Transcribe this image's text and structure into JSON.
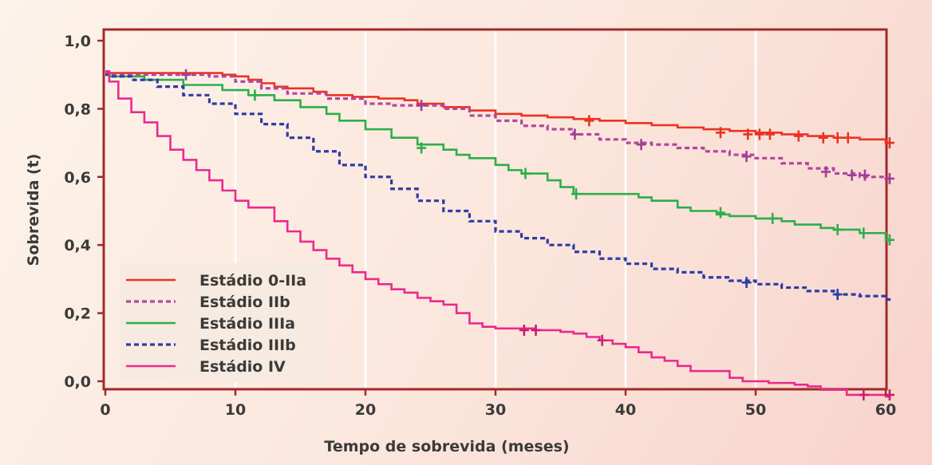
{
  "chart_data": {
    "type": "line",
    "title": "",
    "xlabel": "Tempo de sobrevida (meses)",
    "ylabel": "Sobrevida (t)",
    "xlim": [
      0,
      61
    ],
    "ylim": [
      -0.04,
      1.03
    ],
    "xticks": [
      0,
      10,
      20,
      30,
      40,
      50,
      60
    ],
    "xtick_labels": [
      "0",
      "10",
      "20",
      "30",
      "40",
      "50",
      "60"
    ],
    "yticks": [
      0.0,
      0.2,
      0.4,
      0.6,
      0.8,
      1.0
    ],
    "ytick_labels": [
      "0,0",
      "0,2",
      "0,4",
      "0,6",
      "0,8",
      "1,0"
    ],
    "grid": "vertical",
    "legend_position": "bottom-left",
    "series": [
      {
        "name": "Estádio 0-IIa",
        "color": "#ea3323",
        "dash": "solid",
        "x": [
          0,
          0.3,
          9,
          10,
          11,
          12,
          13,
          14,
          16,
          17,
          19,
          21,
          23,
          24,
          26,
          28,
          30,
          32,
          34,
          36,
          38,
          40,
          42,
          44,
          46,
          48,
          50,
          52,
          54,
          56,
          58,
          60,
          60.4
        ],
        "y": [
          0.91,
          0.905,
          0.9,
          0.895,
          0.885,
          0.875,
          0.865,
          0.86,
          0.85,
          0.84,
          0.835,
          0.83,
          0.825,
          0.815,
          0.805,
          0.795,
          0.785,
          0.78,
          0.775,
          0.77,
          0.765,
          0.758,
          0.752,
          0.745,
          0.74,
          0.735,
          0.73,
          0.725,
          0.72,
          0.715,
          0.71,
          0.7,
          0.7
        ],
        "censor_x": [
          37.2,
          47.3,
          49.4,
          50.3,
          51.1,
          53.3,
          55.2,
          56.3,
          57.1,
          60.3
        ],
        "censor_y": [
          0.765,
          0.73,
          0.725,
          0.725,
          0.725,
          0.72,
          0.715,
          0.715,
          0.715,
          0.7
        ]
      },
      {
        "name": "Estádio IIb",
        "color": "#b2479f",
        "dash": "dashed",
        "x": [
          0,
          0.3,
          8,
          10,
          12,
          14,
          17,
          20,
          22,
          24,
          26,
          28,
          30,
          32,
          34,
          36,
          38,
          40,
          42,
          44,
          46,
          48,
          50,
          52,
          54,
          56,
          58,
          60,
          60.4
        ],
        "y": [
          0.905,
          0.9,
          0.895,
          0.88,
          0.86,
          0.845,
          0.83,
          0.815,
          0.81,
          0.81,
          0.8,
          0.78,
          0.765,
          0.75,
          0.74,
          0.725,
          0.71,
          0.7,
          0.695,
          0.685,
          0.675,
          0.665,
          0.655,
          0.64,
          0.625,
          0.61,
          0.6,
          0.595,
          0.595
        ],
        "censor_x": [
          6.2,
          24.3,
          36.1,
          41.2,
          49.3,
          55.4,
          57.4,
          58.4,
          60.3
        ],
        "censor_y": [
          0.9,
          0.81,
          0.725,
          0.695,
          0.66,
          0.615,
          0.605,
          0.605,
          0.595
        ],
        "censor_color": "#a03f96"
      },
      {
        "name": "Estádio IIIa",
        "color": "#2dae4a",
        "dash": "solid",
        "x": [
          0,
          0.3,
          3,
          6,
          9,
          11,
          13,
          15,
          17,
          18,
          20,
          22,
          24,
          26,
          27,
          28,
          30,
          31,
          32,
          34,
          35,
          36,
          39,
          41,
          42,
          44,
          45,
          47,
          48,
          50,
          52,
          53,
          55,
          56,
          58,
          60,
          60.4
        ],
        "y": [
          0.9,
          0.895,
          0.885,
          0.87,
          0.855,
          0.84,
          0.825,
          0.805,
          0.785,
          0.765,
          0.74,
          0.715,
          0.695,
          0.68,
          0.665,
          0.655,
          0.635,
          0.62,
          0.61,
          0.59,
          0.57,
          0.55,
          0.55,
          0.54,
          0.53,
          0.51,
          0.5,
          0.49,
          0.485,
          0.478,
          0.47,
          0.46,
          0.45,
          0.445,
          0.435,
          0.415,
          0.415
        ],
        "censor_x": [
          11.5,
          24.3,
          32.3,
          36.2,
          47.3,
          51.3,
          56.3,
          58.3,
          60.3
        ],
        "censor_y": [
          0.84,
          0.685,
          0.61,
          0.55,
          0.495,
          0.478,
          0.445,
          0.435,
          0.415
        ]
      },
      {
        "name": "Estádio IIIb",
        "color": "#2e3ca6",
        "dash": "dashed",
        "x": [
          0,
          0.3,
          2,
          4,
          6,
          8,
          10,
          12,
          14,
          16,
          18,
          20,
          22,
          24,
          26,
          28,
          30,
          32,
          34,
          36,
          38,
          40,
          42,
          44,
          46,
          48,
          50,
          52,
          54,
          56,
          58,
          60,
          60.4
        ],
        "y": [
          0.9,
          0.895,
          0.885,
          0.865,
          0.84,
          0.815,
          0.785,
          0.755,
          0.715,
          0.675,
          0.635,
          0.6,
          0.565,
          0.53,
          0.5,
          0.47,
          0.44,
          0.42,
          0.4,
          0.38,
          0.36,
          0.345,
          0.33,
          0.32,
          0.305,
          0.295,
          0.285,
          0.275,
          0.265,
          0.255,
          0.25,
          0.24,
          0.24
        ],
        "censor_x": [
          49.3,
          56.3
        ],
        "censor_y": [
          0.29,
          0.255
        ]
      },
      {
        "name": "Estádio IV",
        "color": "#ea2a8e",
        "dash": "solid",
        "x": [
          0,
          0.3,
          1,
          2,
          3,
          4,
          5,
          6,
          7,
          8,
          9,
          10,
          11,
          13,
          14,
          15,
          16,
          17,
          18,
          19,
          20,
          21,
          22,
          23,
          24,
          25,
          26,
          27,
          28,
          29,
          30,
          33,
          35,
          36,
          37,
          38,
          39,
          40,
          41,
          42,
          43,
          44,
          45,
          48,
          49,
          51,
          53,
          54,
          55,
          57,
          60,
          60.4
        ],
        "y": [
          0.91,
          0.88,
          0.83,
          0.79,
          0.76,
          0.72,
          0.68,
          0.65,
          0.62,
          0.59,
          0.56,
          0.53,
          0.51,
          0.47,
          0.44,
          0.41,
          0.385,
          0.36,
          0.34,
          0.32,
          0.3,
          0.285,
          0.27,
          0.26,
          0.245,
          0.235,
          0.225,
          0.2,
          0.17,
          0.16,
          0.155,
          0.15,
          0.145,
          0.14,
          0.13,
          0.12,
          0.11,
          0.1,
          0.085,
          0.07,
          0.06,
          0.045,
          0.03,
          0.01,
          0.0,
          -0.005,
          -0.01,
          -0.015,
          -0.025,
          -0.04,
          -0.045,
          -0.045
        ],
        "censor_x": [
          32.2,
          33.1,
          38.2,
          58.3,
          60.3
        ],
        "censor_y": [
          0.15,
          0.15,
          0.12,
          -0.04,
          -0.04
        ],
        "censor_color": "#c81f6e"
      }
    ]
  },
  "colors": {
    "frame": "#a02b2a",
    "legend_bg": "#f6e9e0"
  }
}
